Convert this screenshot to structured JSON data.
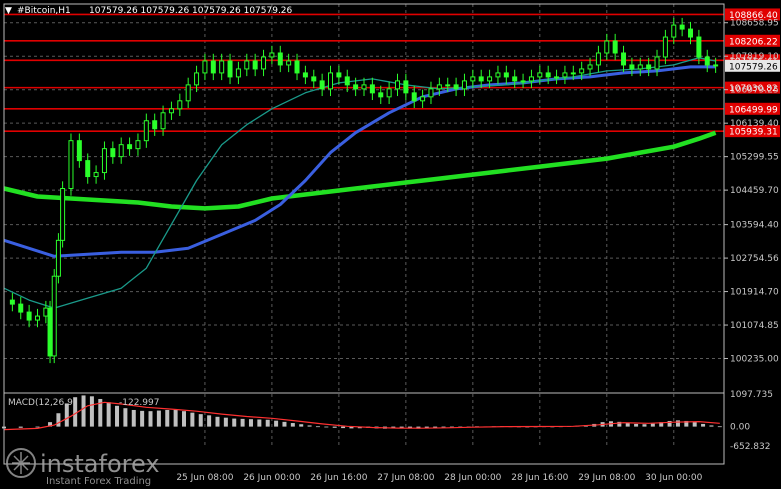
{
  "header": {
    "symbol": "#Bitcoin,H1",
    "ohlc": "107579.26 107579.26 107579.26 107579.26"
  },
  "colors": {
    "background": "#000000",
    "grid": "#5a5a5a",
    "candle": "#2bff2b",
    "ma_fast": "#1a9a8a",
    "ma_mid": "#3a5fe0",
    "ma_slow": "#22e022",
    "level": "#e00000",
    "macd_hist": "#c0c0c0",
    "macd_signal": "#ff3030",
    "current_price_box": "#e8e8e8"
  },
  "chart_data": {
    "type": "line",
    "instrument": "#Bitcoin",
    "timeframe": "H1",
    "ylim": [
      99395.15,
      109129.0
    ],
    "y_ticks": [
      100235.0,
      101074.85,
      101914.7,
      102754.56,
      103594.4,
      104459.7,
      105299.55,
      106139.4,
      106979.25,
      107819.1,
      108658.95
    ],
    "x_labels": [
      "25 Jun 08:00",
      "26 Jun 00:00",
      "26 Jun 16:00",
      "27 Jun 08:00",
      "28 Jun 00:00",
      "28 Jun 16:00",
      "29 Jun 08:00",
      "30 Jun 00:00"
    ],
    "x_label_positions_hours": [
      48,
      64,
      80,
      96,
      112,
      128,
      144,
      160
    ],
    "x_range_hours": [
      0,
      172
    ],
    "level_lines": [
      {
        "label": "108866.40",
        "value": 108866.4
      },
      {
        "label": "108206.22",
        "value": 108206.22
      },
      {
        "label": "107716.41",
        "value": 107716.41
      },
      {
        "label": "107030.82",
        "value": 107030.82
      },
      {
        "label": "106499.99",
        "value": 106499.99
      },
      {
        "label": "105939.31",
        "value": 105939.31
      }
    ],
    "current_price": {
      "label": "107579.26",
      "value": 107579.26
    },
    "price_close": [
      {
        "t": 0,
        "v": 101700
      },
      {
        "t": 2,
        "v": 101600
      },
      {
        "t": 4,
        "v": 101400
      },
      {
        "t": 6,
        "v": 101200
      },
      {
        "t": 8,
        "v": 101300
      },
      {
        "t": 10,
        "v": 101500
      },
      {
        "t": 11,
        "v": 100300
      },
      {
        "t": 12,
        "v": 102300
      },
      {
        "t": 13,
        "v": 103200
      },
      {
        "t": 14,
        "v": 104500
      },
      {
        "t": 16,
        "v": 105700
      },
      {
        "t": 18,
        "v": 105200
      },
      {
        "t": 20,
        "v": 104800
      },
      {
        "t": 22,
        "v": 104900
      },
      {
        "t": 24,
        "v": 105500
      },
      {
        "t": 26,
        "v": 105300
      },
      {
        "t": 28,
        "v": 105600
      },
      {
        "t": 30,
        "v": 105500
      },
      {
        "t": 32,
        "v": 105700
      },
      {
        "t": 34,
        "v": 106200
      },
      {
        "t": 36,
        "v": 106000
      },
      {
        "t": 38,
        "v": 106400
      },
      {
        "t": 40,
        "v": 106500
      },
      {
        "t": 42,
        "v": 106700
      },
      {
        "t": 44,
        "v": 107100
      },
      {
        "t": 46,
        "v": 107400
      },
      {
        "t": 48,
        "v": 107700
      },
      {
        "t": 50,
        "v": 107400
      },
      {
        "t": 52,
        "v": 107700
      },
      {
        "t": 54,
        "v": 107300
      },
      {
        "t": 56,
        "v": 107500
      },
      {
        "t": 58,
        "v": 107700
      },
      {
        "t": 60,
        "v": 107500
      },
      {
        "t": 62,
        "v": 107800
      },
      {
        "t": 64,
        "v": 107900
      },
      {
        "t": 66,
        "v": 107600
      },
      {
        "t": 68,
        "v": 107700
      },
      {
        "t": 70,
        "v": 107400
      },
      {
        "t": 72,
        "v": 107300
      },
      {
        "t": 74,
        "v": 107200
      },
      {
        "t": 76,
        "v": 107000
      },
      {
        "t": 78,
        "v": 107400
      },
      {
        "t": 80,
        "v": 107300
      },
      {
        "t": 82,
        "v": 107100
      },
      {
        "t": 84,
        "v": 107000
      },
      {
        "t": 86,
        "v": 107100
      },
      {
        "t": 88,
        "v": 106900
      },
      {
        "t": 90,
        "v": 106800
      },
      {
        "t": 92,
        "v": 107000
      },
      {
        "t": 94,
        "v": 107200
      },
      {
        "t": 96,
        "v": 106900
      },
      {
        "t": 98,
        "v": 106700
      },
      {
        "t": 100,
        "v": 106800
      },
      {
        "t": 102,
        "v": 107000
      },
      {
        "t": 104,
        "v": 107100
      },
      {
        "t": 106,
        "v": 107100
      },
      {
        "t": 108,
        "v": 107000
      },
      {
        "t": 110,
        "v": 107200
      },
      {
        "t": 112,
        "v": 107300
      },
      {
        "t": 114,
        "v": 107200
      },
      {
        "t": 116,
        "v": 107300
      },
      {
        "t": 118,
        "v": 107400
      },
      {
        "t": 120,
        "v": 107300
      },
      {
        "t": 122,
        "v": 107200
      },
      {
        "t": 124,
        "v": 107200
      },
      {
        "t": 126,
        "v": 107300
      },
      {
        "t": 128,
        "v": 107400
      },
      {
        "t": 130,
        "v": 107300
      },
      {
        "t": 132,
        "v": 107300
      },
      {
        "t": 134,
        "v": 107400
      },
      {
        "t": 136,
        "v": 107400
      },
      {
        "t": 138,
        "v": 107500
      },
      {
        "t": 140,
        "v": 107600
      },
      {
        "t": 142,
        "v": 107900
      },
      {
        "t": 144,
        "v": 108200
      },
      {
        "t": 146,
        "v": 107900
      },
      {
        "t": 148,
        "v": 107600
      },
      {
        "t": 150,
        "v": 107500
      },
      {
        "t": 152,
        "v": 107600
      },
      {
        "t": 154,
        "v": 107500
      },
      {
        "t": 156,
        "v": 107800
      },
      {
        "t": 158,
        "v": 108300
      },
      {
        "t": 160,
        "v": 108600
      },
      {
        "t": 162,
        "v": 108500
      },
      {
        "t": 164,
        "v": 108300
      },
      {
        "t": 166,
        "v": 107800
      },
      {
        "t": 168,
        "v": 107600
      },
      {
        "t": 170,
        "v": 107580
      }
    ],
    "series": [
      {
        "values": [
          {
            "t": 0,
            "v": 102000
          },
          {
            "t": 6,
            "v": 101700
          },
          {
            "t": 12,
            "v": 101500
          },
          {
            "t": 20,
            "v": 101750
          },
          {
            "t": 28,
            "v": 102000
          },
          {
            "t": 34,
            "v": 102500
          },
          {
            "t": 40,
            "v": 103600
          },
          {
            "t": 46,
            "v": 104700
          },
          {
            "t": 52,
            "v": 105600
          },
          {
            "t": 58,
            "v": 106100
          },
          {
            "t": 64,
            "v": 106500
          },
          {
            "t": 72,
            "v": 106900
          },
          {
            "t": 80,
            "v": 107150
          },
          {
            "t": 88,
            "v": 107250
          },
          {
            "t": 96,
            "v": 107100
          },
          {
            "t": 104,
            "v": 107000
          },
          {
            "t": 112,
            "v": 107050
          },
          {
            "t": 120,
            "v": 107100
          },
          {
            "t": 128,
            "v": 107200
          },
          {
            "t": 136,
            "v": 107300
          },
          {
            "t": 144,
            "v": 107450
          },
          {
            "t": 152,
            "v": 107500
          },
          {
            "t": 160,
            "v": 107600
          },
          {
            "t": 166,
            "v": 107780
          },
          {
            "t": 170,
            "v": 107700
          }
        ]
      },
      {
        "values": [
          {
            "t": 0,
            "v": 103200
          },
          {
            "t": 6,
            "v": 103000
          },
          {
            "t": 12,
            "v": 102800
          },
          {
            "t": 20,
            "v": 102850
          },
          {
            "t": 28,
            "v": 102900
          },
          {
            "t": 36,
            "v": 102900
          },
          {
            "t": 44,
            "v": 103000
          },
          {
            "t": 52,
            "v": 103350
          },
          {
            "t": 60,
            "v": 103700
          },
          {
            "t": 66,
            "v": 104100
          },
          {
            "t": 72,
            "v": 104700
          },
          {
            "t": 78,
            "v": 105400
          },
          {
            "t": 84,
            "v": 105900
          },
          {
            "t": 92,
            "v": 106400
          },
          {
            "t": 100,
            "v": 106800
          },
          {
            "t": 108,
            "v": 107000
          },
          {
            "t": 116,
            "v": 107100
          },
          {
            "t": 124,
            "v": 107150
          },
          {
            "t": 132,
            "v": 107250
          },
          {
            "t": 140,
            "v": 107300
          },
          {
            "t": 148,
            "v": 107400
          },
          {
            "t": 156,
            "v": 107450
          },
          {
            "t": 164,
            "v": 107550
          },
          {
            "t": 170,
            "v": 107550
          }
        ]
      },
      {
        "values": [
          {
            "t": 0,
            "v": 104500
          },
          {
            "t": 8,
            "v": 104300
          },
          {
            "t": 16,
            "v": 104250
          },
          {
            "t": 24,
            "v": 104200
          },
          {
            "t": 32,
            "v": 104150
          },
          {
            "t": 40,
            "v": 104050
          },
          {
            "t": 48,
            "v": 104000
          },
          {
            "t": 56,
            "v": 104050
          },
          {
            "t": 64,
            "v": 104250
          },
          {
            "t": 72,
            "v": 104350
          },
          {
            "t": 80,
            "v": 104450
          },
          {
            "t": 88,
            "v": 104550
          },
          {
            "t": 96,
            "v": 104650
          },
          {
            "t": 104,
            "v": 104750
          },
          {
            "t": 112,
            "v": 104850
          },
          {
            "t": 120,
            "v": 104950
          },
          {
            "t": 128,
            "v": 105050
          },
          {
            "t": 136,
            "v": 105150
          },
          {
            "t": 144,
            "v": 105250
          },
          {
            "t": 152,
            "v": 105400
          },
          {
            "t": 160,
            "v": 105550
          },
          {
            "t": 166,
            "v": 105750
          },
          {
            "t": 170,
            "v": 105900
          }
        ]
      }
    ],
    "macd": {
      "label": "MACD(12,26,9)",
      "value_text": "-122.997",
      "ylim": [
        -652.832,
        1097.735
      ],
      "y_ticks": [
        {
          "label": "1097.735",
          "value": 1097.735
        },
        {
          "label": "0.00",
          "value": 0
        },
        {
          "label": "-652.832",
          "value": -652.832
        }
      ],
      "histogram": [
        {
          "t": 0,
          "v": -60
        },
        {
          "t": 4,
          "v": -40
        },
        {
          "t": 8,
          "v": -20
        },
        {
          "t": 11,
          "v": 150
        },
        {
          "t": 13,
          "v": 450
        },
        {
          "t": 15,
          "v": 780
        },
        {
          "t": 17,
          "v": 990
        },
        {
          "t": 19,
          "v": 1050
        },
        {
          "t": 21,
          "v": 1020
        },
        {
          "t": 23,
          "v": 930
        },
        {
          "t": 25,
          "v": 820
        },
        {
          "t": 27,
          "v": 700
        },
        {
          "t": 29,
          "v": 620
        },
        {
          "t": 31,
          "v": 560
        },
        {
          "t": 33,
          "v": 530
        },
        {
          "t": 35,
          "v": 520
        },
        {
          "t": 37,
          "v": 540
        },
        {
          "t": 39,
          "v": 560
        },
        {
          "t": 41,
          "v": 560
        },
        {
          "t": 43,
          "v": 520
        },
        {
          "t": 45,
          "v": 470
        },
        {
          "t": 47,
          "v": 420
        },
        {
          "t": 49,
          "v": 380
        },
        {
          "t": 51,
          "v": 330
        },
        {
          "t": 53,
          "v": 300
        },
        {
          "t": 55,
          "v": 270
        },
        {
          "t": 57,
          "v": 260
        },
        {
          "t": 59,
          "v": 250
        },
        {
          "t": 61,
          "v": 240
        },
        {
          "t": 63,
          "v": 230
        },
        {
          "t": 65,
          "v": 200
        },
        {
          "t": 67,
          "v": 160
        },
        {
          "t": 69,
          "v": 120
        },
        {
          "t": 71,
          "v": 80
        },
        {
          "t": 73,
          "v": 40
        },
        {
          "t": 75,
          "v": 10
        },
        {
          "t": 77,
          "v": -20
        },
        {
          "t": 79,
          "v": -40
        },
        {
          "t": 81,
          "v": -50
        },
        {
          "t": 83,
          "v": -60
        },
        {
          "t": 85,
          "v": -55
        },
        {
          "t": 87,
          "v": -45
        },
        {
          "t": 89,
          "v": -60
        },
        {
          "t": 91,
          "v": -70
        },
        {
          "t": 93,
          "v": -60
        },
        {
          "t": 95,
          "v": -50
        },
        {
          "t": 97,
          "v": -65
        },
        {
          "t": 99,
          "v": -70
        },
        {
          "t": 101,
          "v": -55
        },
        {
          "t": 103,
          "v": -35
        },
        {
          "t": 105,
          "v": -25
        },
        {
          "t": 107,
          "v": -15
        },
        {
          "t": 109,
          "v": -5
        },
        {
          "t": 111,
          "v": 0
        },
        {
          "t": 113,
          "v": 10
        },
        {
          "t": 115,
          "v": 5
        },
        {
          "t": 117,
          "v": 10
        },
        {
          "t": 119,
          "v": 15
        },
        {
          "t": 121,
          "v": 10
        },
        {
          "t": 123,
          "v": 5
        },
        {
          "t": 125,
          "v": 0
        },
        {
          "t": 127,
          "v": 5
        },
        {
          "t": 129,
          "v": 10
        },
        {
          "t": 131,
          "v": 5
        },
        {
          "t": 133,
          "v": 10
        },
        {
          "t": 135,
          "v": 20
        },
        {
          "t": 137,
          "v": 30
        },
        {
          "t": 139,
          "v": 50
        },
        {
          "t": 141,
          "v": 90
        },
        {
          "t": 143,
          "v": 150
        },
        {
          "t": 145,
          "v": 180
        },
        {
          "t": 147,
          "v": 160
        },
        {
          "t": 149,
          "v": 120
        },
        {
          "t": 151,
          "v": 90
        },
        {
          "t": 153,
          "v": 80
        },
        {
          "t": 155,
          "v": 100
        },
        {
          "t": 157,
          "v": 150
        },
        {
          "t": 159,
          "v": 190
        },
        {
          "t": 161,
          "v": 210
        },
        {
          "t": 163,
          "v": 190
        },
        {
          "t": 165,
          "v": 150
        },
        {
          "t": 167,
          "v": 90
        },
        {
          "t": 169,
          "v": 40
        },
        {
          "t": 171,
          "v": 10
        }
      ],
      "signal": [
        {
          "t": 0,
          "v": -100
        },
        {
          "t": 8,
          "v": -60
        },
        {
          "t": 12,
          "v": 50
        },
        {
          "t": 16,
          "v": 350
        },
        {
          "t": 20,
          "v": 700
        },
        {
          "t": 24,
          "v": 820
        },
        {
          "t": 28,
          "v": 760
        },
        {
          "t": 34,
          "v": 650
        },
        {
          "t": 40,
          "v": 590
        },
        {
          "t": 46,
          "v": 520
        },
        {
          "t": 52,
          "v": 420
        },
        {
          "t": 58,
          "v": 340
        },
        {
          "t": 64,
          "v": 280
        },
        {
          "t": 70,
          "v": 190
        },
        {
          "t": 76,
          "v": 90
        },
        {
          "t": 82,
          "v": 10
        },
        {
          "t": 88,
          "v": -30
        },
        {
          "t": 94,
          "v": -50
        },
        {
          "t": 100,
          "v": -55
        },
        {
          "t": 106,
          "v": -40
        },
        {
          "t": 112,
          "v": -20
        },
        {
          "t": 120,
          "v": 0
        },
        {
          "t": 128,
          "v": 5
        },
        {
          "t": 136,
          "v": 10
        },
        {
          "t": 142,
          "v": 60
        },
        {
          "t": 148,
          "v": 130
        },
        {
          "t": 154,
          "v": 110
        },
        {
          "t": 160,
          "v": 150
        },
        {
          "t": 166,
          "v": 170
        },
        {
          "t": 171,
          "v": 110
        }
      ]
    }
  },
  "watermark": {
    "brand": "instaforex",
    "tagline": "Instant Forex Trading"
  }
}
